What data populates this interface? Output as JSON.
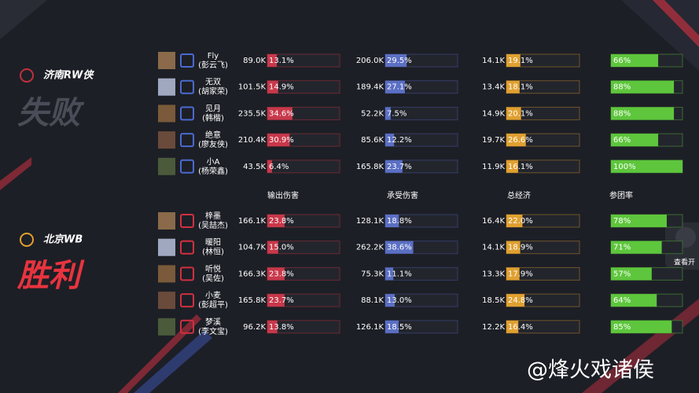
{
  "teams": [
    {
      "name": "济南RW侠",
      "result": "失败",
      "players": [
        {
          "name": "Fly",
          "real_name": "(彭云飞)",
          "damage": {
            "amount": "89.0K",
            "share": 13.1,
            "share_label": "13.1%"
          },
          "taken": {
            "amount": "206.0K",
            "share": 29.5,
            "share_label": "29.5%"
          },
          "gold": {
            "amount": "14.1K",
            "share": 19.1,
            "share_label": "19.1%"
          },
          "participation": {
            "value": 66,
            "label": "66%"
          }
        },
        {
          "name": "无双",
          "real_name": "(胡家荣)",
          "damage": {
            "amount": "101.5K",
            "share": 14.9,
            "share_label": "14.9%"
          },
          "taken": {
            "amount": "189.4K",
            "share": 27.1,
            "share_label": "27.1%"
          },
          "gold": {
            "amount": "13.4K",
            "share": 18.1,
            "share_label": "18.1%"
          },
          "participation": {
            "value": 88,
            "label": "88%"
          }
        },
        {
          "name": "见月",
          "real_name": "(韩楷)",
          "damage": {
            "amount": "235.5K",
            "share": 34.6,
            "share_label": "34.6%"
          },
          "taken": {
            "amount": "52.2K",
            "share": 7.5,
            "share_label": "7.5%"
          },
          "gold": {
            "amount": "14.9K",
            "share": 20.1,
            "share_label": "20.1%"
          },
          "participation": {
            "value": 88,
            "label": "88%"
          }
        },
        {
          "name": "绝意",
          "real_name": "(廖友侠)",
          "damage": {
            "amount": "210.4K",
            "share": 30.9,
            "share_label": "30.9%"
          },
          "taken": {
            "amount": "85.6K",
            "share": 12.2,
            "share_label": "12.2%"
          },
          "gold": {
            "amount": "19.7K",
            "share": 26.6,
            "share_label": "26.6%"
          },
          "participation": {
            "value": 66,
            "label": "66%"
          }
        },
        {
          "name": "小A",
          "real_name": "(杨荣鑫)",
          "damage": {
            "amount": "43.5K",
            "share": 6.4,
            "share_label": "6.4%"
          },
          "taken": {
            "amount": "165.8K",
            "share": 23.7,
            "share_label": "23.7%"
          },
          "gold": {
            "amount": "11.9K",
            "share": 16.1,
            "share_label": "16.1%"
          },
          "participation": {
            "value": 100,
            "label": "100%"
          }
        }
      ]
    },
    {
      "name": "北京WB",
      "result": "胜利",
      "players": [
        {
          "name": "梓墨",
          "real_name": "(吴喆杰)",
          "damage": {
            "amount": "166.1K",
            "share": 23.8,
            "share_label": "23.8%"
          },
          "taken": {
            "amount": "128.1K",
            "share": 18.8,
            "share_label": "18.8%"
          },
          "gold": {
            "amount": "16.4K",
            "share": 22.0,
            "share_label": "22.0%"
          },
          "participation": {
            "value": 78,
            "label": "78%"
          }
        },
        {
          "name": "暖阳",
          "real_name": "(林恒)",
          "damage": {
            "amount": "104.7K",
            "share": 15.0,
            "share_label": "15.0%"
          },
          "taken": {
            "amount": "262.2K",
            "share": 38.6,
            "share_label": "38.6%"
          },
          "gold": {
            "amount": "14.1K",
            "share": 18.9,
            "share_label": "18.9%"
          },
          "participation": {
            "value": 71,
            "label": "71%"
          }
        },
        {
          "name": "听悦",
          "real_name": "(吴佐)",
          "damage": {
            "amount": "166.3K",
            "share": 23.8,
            "share_label": "23.8%"
          },
          "taken": {
            "amount": "75.3K",
            "share": 11.1,
            "share_label": "11.1%"
          },
          "gold": {
            "amount": "13.3K",
            "share": 17.9,
            "share_label": "17.9%"
          },
          "participation": {
            "value": 57,
            "label": "57%"
          }
        },
        {
          "name": "小麦",
          "real_name": "(彭超平)",
          "damage": {
            "amount": "165.8K",
            "share": 23.7,
            "share_label": "23.7%"
          },
          "taken": {
            "amount": "88.1K",
            "share": 13.0,
            "share_label": "13.0%"
          },
          "gold": {
            "amount": "18.5K",
            "share": 24.8,
            "share_label": "24.8%"
          },
          "participation": {
            "value": 64,
            "label": "64%"
          }
        },
        {
          "name": "梦溪",
          "real_name": "(李文宝)",
          "damage": {
            "amount": "96.2K",
            "share": 13.8,
            "share_label": "13.8%"
          },
          "taken": {
            "amount": "126.1K",
            "share": 18.5,
            "share_label": "18.5%"
          },
          "gold": {
            "amount": "12.2K",
            "share": 16.4,
            "share_label": "16.4%"
          },
          "participation": {
            "value": 85,
            "label": "85%"
          }
        }
      ]
    }
  ],
  "columns": [
    "输出伤害",
    "承受伤害",
    "总经济",
    "参团率"
  ],
  "button": "查看开",
  "watermark": "@烽火戏诸侯"
}
